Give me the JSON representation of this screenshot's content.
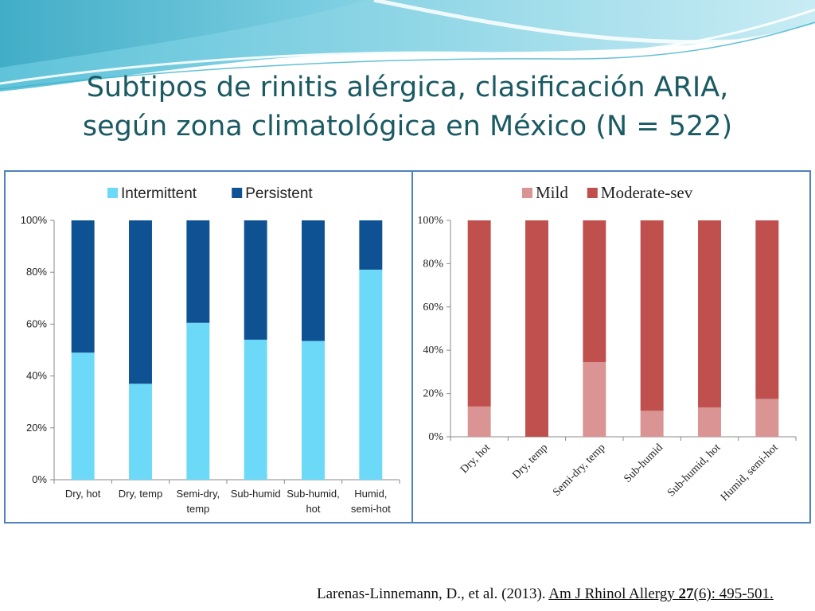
{
  "slide": {
    "title_line1": "Subtipos de rinitis alérgica, clasificación ARIA,",
    "title_line2": "según zona climatológica en México (N = 522)",
    "citation": {
      "authors": "Larenas-Linnemann, D., et al. (2013). ",
      "journal": "Am J Rhinol Allergy ",
      "volume": "27",
      "issue_pages": "(6): 495-501."
    }
  },
  "colors": {
    "intermittent": "#6dd9f8",
    "persistent": "#0e5293",
    "mild": "#d99493",
    "moderate_sev": "#c0504d",
    "frame": "#4f81bd",
    "title": "#1b5a63"
  },
  "chart_data": [
    {
      "type": "bar",
      "stacked": true,
      "percent": true,
      "categories": [
        "Dry, hot",
        "Dry, temp",
        "Semi-dry, temp",
        "Sub-humid",
        "Sub-humid, hot",
        "Humid, semi-hot"
      ],
      "category_lines": [
        [
          "Dry, hot"
        ],
        [
          "Dry, temp"
        ],
        [
          "Semi-dry,",
          "temp"
        ],
        [
          "Sub-humid"
        ],
        [
          "Sub-humid,",
          "hot"
        ],
        [
          "Humid,",
          "semi-hot"
        ]
      ],
      "series": [
        {
          "name": "Intermittent",
          "values": [
            49,
            37,
            60.5,
            54,
            53.5,
            81
          ]
        },
        {
          "name": "Persistent",
          "values": [
            51,
            63,
            39.5,
            46,
            46.5,
            19
          ]
        }
      ],
      "ylim": [
        0,
        100
      ],
      "yticks": [
        "0%",
        "20%",
        "40%",
        "60%",
        "80%",
        "100%"
      ],
      "legend": "top",
      "grid": false
    },
    {
      "type": "bar",
      "stacked": true,
      "percent": true,
      "categories": [
        "Dry, hot",
        "Dry, temp",
        "Semi-dry, temp",
        "Sub-humid",
        "Sub-humid, hot",
        "Humid, semi-hot"
      ],
      "series": [
        {
          "name": "Mild",
          "values": [
            14,
            0,
            34.5,
            12,
            13.5,
            17.5
          ]
        },
        {
          "name": "Moderate-sev",
          "values": [
            86,
            100,
            65.5,
            88,
            86.5,
            82.5
          ]
        }
      ],
      "ylim": [
        0,
        100
      ],
      "yticks": [
        "0%",
        "20%",
        "40%",
        "60%",
        "80%",
        "100%"
      ],
      "legend": "top",
      "grid": false,
      "x_tick_rotation": "diagonal"
    }
  ]
}
